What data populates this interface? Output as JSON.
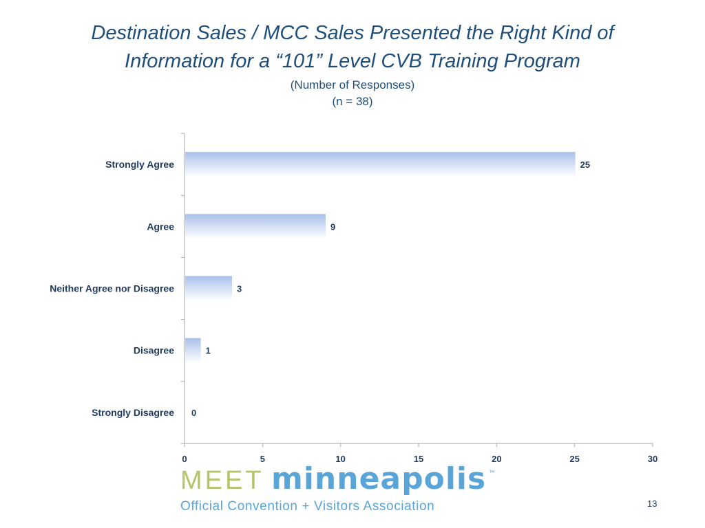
{
  "slide": {
    "title_line1": "Destination Sales / MCC Sales Presented the Right Kind of",
    "title_line2": "Information for a “101” Level CVB Training Program",
    "subtitle_line1": "(Number of Responses)",
    "subtitle_line2": "(n = 38)",
    "page_number": "13"
  },
  "logo": {
    "word1": "MEET",
    "word2": "minneapolis",
    "trademark": "™",
    "tagline": "Official Convention + Visitors Association"
  },
  "colors": {
    "title": "#1f4e79",
    "text": "#1f3a5f",
    "bar_top": "#a9c0ea",
    "bar_bottom": "#ffffff",
    "axis": "#a6a6a6",
    "logo_meet": "#b5c46a",
    "logo_city": "#5aa5d8"
  },
  "chart_data": {
    "type": "bar",
    "orientation": "horizontal",
    "categories": [
      "Strongly Agree",
      "Agree",
      "Neither Agree nor Disagree",
      "Disagree",
      "Strongly Disagree"
    ],
    "values": [
      25,
      9,
      3,
      1,
      0
    ],
    "data_labels": [
      "25",
      "9",
      "3",
      "1",
      "0"
    ],
    "xlim": [
      0,
      30
    ],
    "x_ticks": [
      0,
      5,
      10,
      15,
      20,
      25,
      30
    ],
    "x_tick_labels": [
      "0",
      "5",
      "10",
      "15",
      "20",
      "25",
      "30"
    ],
    "grid": false,
    "legend": "none"
  }
}
